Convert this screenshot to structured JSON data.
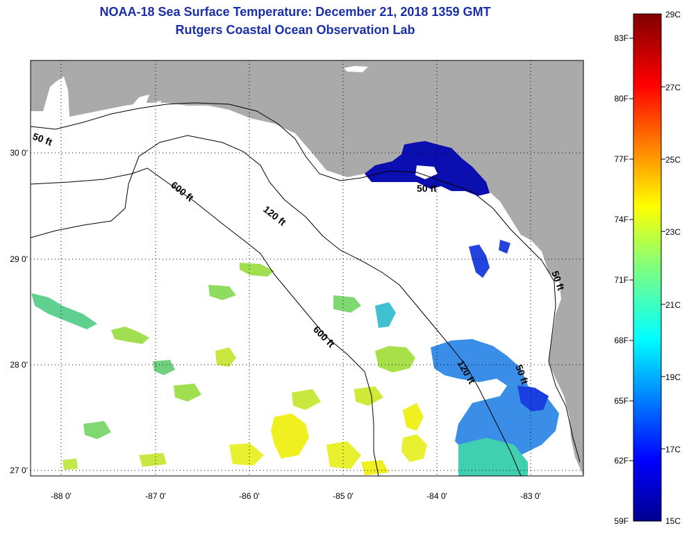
{
  "title": {
    "line1": "NOAA-18 Sea Surface Temperature:  December 21, 2018 1359 GMT",
    "line2": "Rutgers Coastal Ocean Observation Lab"
  },
  "map": {
    "lat_labels": [
      "30 0'",
      "29 0'",
      "28 0'",
      "27 0'"
    ],
    "lon_labels": [
      "-88 0'",
      "-87 0'",
      "-86 0'",
      "-85 0'",
      "-84 0'",
      "-83 0'"
    ],
    "contours": [
      "50 ft",
      "600 ft",
      "120 ft",
      "50 ft",
      "600 ft",
      "120 ft",
      "50 ft",
      "50 ft"
    ],
    "colors": {
      "land": "#aaaaaa",
      "ocean": "#ffffff",
      "title": "#1a2fa8"
    }
  },
  "colorbar": {
    "celsius": [
      "29C",
      "27C",
      "25C",
      "23C",
      "21C",
      "19C",
      "17C",
      "15C"
    ],
    "fahrenheit": [
      "83F",
      "80F",
      "77F",
      "74F",
      "71F",
      "68F",
      "65F",
      "62F",
      "59F"
    ]
  }
}
